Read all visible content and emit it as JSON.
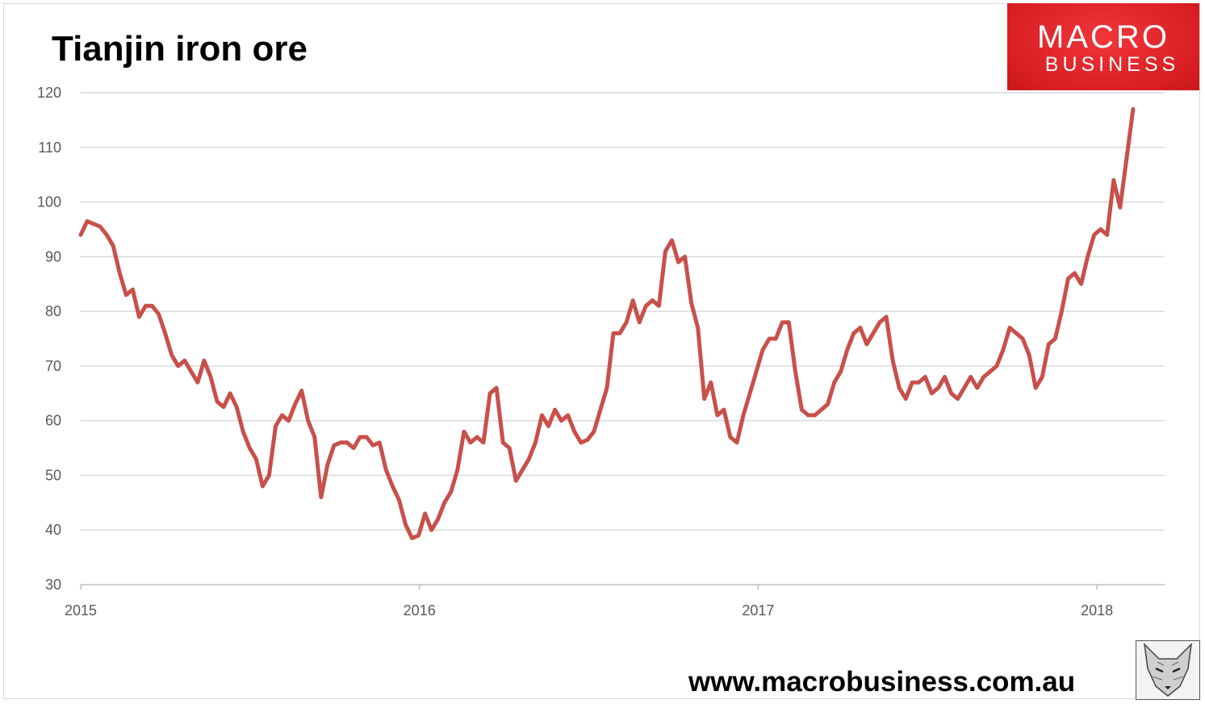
{
  "chart_data": {
    "type": "line",
    "title": "Tianjin iron ore",
    "xlabel": "",
    "ylabel": "",
    "start_date": "2015-01-01",
    "interval_days": 7,
    "xlim": [
      2015.0,
      2018.2
    ],
    "ylim": [
      30,
      120
    ],
    "yticks": [
      30,
      40,
      50,
      60,
      70,
      80,
      90,
      100,
      110,
      120
    ],
    "xticks": [
      2015,
      2016,
      2017,
      2018
    ],
    "grid": true,
    "legend": "none",
    "series": [
      {
        "name": "Tianjin iron ore",
        "color": "#c8504a",
        "values": [
          94,
          96.5,
          96,
          95.5,
          94,
          92,
          87,
          83,
          84,
          79,
          81,
          81,
          79.5,
          76,
          72,
          70,
          71,
          69,
          67,
          71,
          68,
          63.5,
          62.5,
          65,
          62.5,
          58,
          55,
          53,
          48,
          50,
          59,
          61,
          60,
          63,
          65.5,
          60,
          57,
          46,
          52,
          55.5,
          56,
          56,
          55,
          57,
          57,
          55.5,
          56,
          51,
          48,
          45.5,
          41,
          38.5,
          39,
          43,
          40,
          42,
          45,
          47,
          51,
          58,
          56,
          57,
          56,
          65,
          66,
          56,
          55,
          49,
          51,
          53,
          56,
          61,
          59,
          62,
          60,
          61,
          58,
          56,
          56.5,
          58,
          62,
          66,
          76,
          76,
          78,
          82,
          78,
          81,
          82,
          81,
          91,
          93,
          89,
          90,
          81.5,
          77,
          64,
          67,
          61,
          62,
          57,
          56,
          61,
          65,
          69,
          73,
          75,
          75,
          78,
          78,
          69,
          62,
          61,
          61,
          62,
          63,
          67,
          69,
          73,
          76,
          77,
          74,
          76,
          78,
          79,
          71,
          66,
          64,
          67,
          67,
          68,
          65,
          66,
          68,
          65,
          64,
          66,
          68,
          66,
          68,
          69,
          70,
          73,
          77,
          76,
          75,
          72,
          66,
          68,
          74,
          75,
          80,
          86,
          87,
          85,
          90,
          94,
          95,
          94,
          104,
          99,
          108,
          117
        ]
      }
    ]
  },
  "branding": {
    "logo_line1": "MACRO",
    "logo_line2": "BUSINESS",
    "url": "www.macrobusiness.com.au"
  }
}
